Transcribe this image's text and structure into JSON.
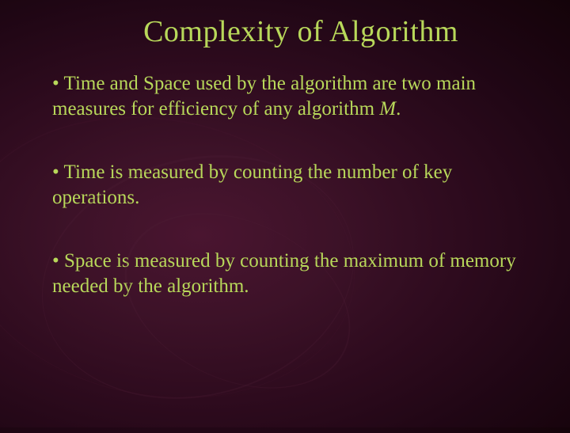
{
  "title": "Complexity of Algorithm",
  "bullets": [
    {
      "pre": "• Time and Space used by the algorithm are two main measures for efficiency of any algorithm ",
      "italic": "M",
      "post": "."
    },
    {
      "pre": "• Time is measured by counting the number of key operations.",
      "italic": "",
      "post": ""
    },
    {
      "pre": "• Space is measured by counting the maximum of memory needed by the algorithm.",
      "italic": "",
      "post": ""
    }
  ],
  "colors": {
    "text": "#b8d85a",
    "background_center": "#4a1530",
    "background_edge": "#140309"
  },
  "typography": {
    "title_fontsize": 38,
    "body_fontsize": 25,
    "font_family": "Times New Roman"
  }
}
